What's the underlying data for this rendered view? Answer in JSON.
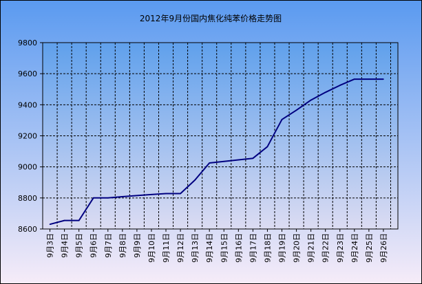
{
  "chart_data": {
    "type": "line",
    "title": "2012年9月份国内焦化纯苯价格走势图",
    "xlabel": "",
    "ylabel": "",
    "categories": [
      "9月3日",
      "9月4日",
      "9月5日",
      "9月6日",
      "9月7日",
      "9月8日",
      "9月9日",
      "9月10日",
      "9月11日",
      "9月12日",
      "9月13日",
      "9月14日",
      "9月15日",
      "9月16日",
      "9月17日",
      "9月18日",
      "9月19日",
      "9月20日",
      "9月21日",
      "9月22日",
      "9月23日",
      "9月24日",
      "9月25日",
      "9月26日"
    ],
    "yticks": [
      "8600",
      "8800",
      "9000",
      "9200",
      "9400",
      "9600",
      "9800"
    ],
    "ylim": [
      8600,
      9800
    ],
    "series": [
      {
        "values": [
          8630,
          8655,
          8655,
          8800,
          8800,
          8808,
          8815,
          8822,
          8828,
          8828,
          8915,
          9025,
          9035,
          9045,
          9055,
          9130,
          9305,
          9365,
          9430,
          9480,
          9525,
          9565,
          9565,
          9565
        ]
      }
    ],
    "grid": true,
    "legend": "none",
    "colors": {
      "line": "#000080",
      "grid": "#000000",
      "plot_gradient_top": "#5fa0ec",
      "plot_gradient_bottom": "#dcdcf2",
      "outer_gradient_top": "#5a9af0",
      "outer_gradient_bottom": "#f6ecf8",
      "border": "#000000",
      "text": "#000000"
    }
  }
}
